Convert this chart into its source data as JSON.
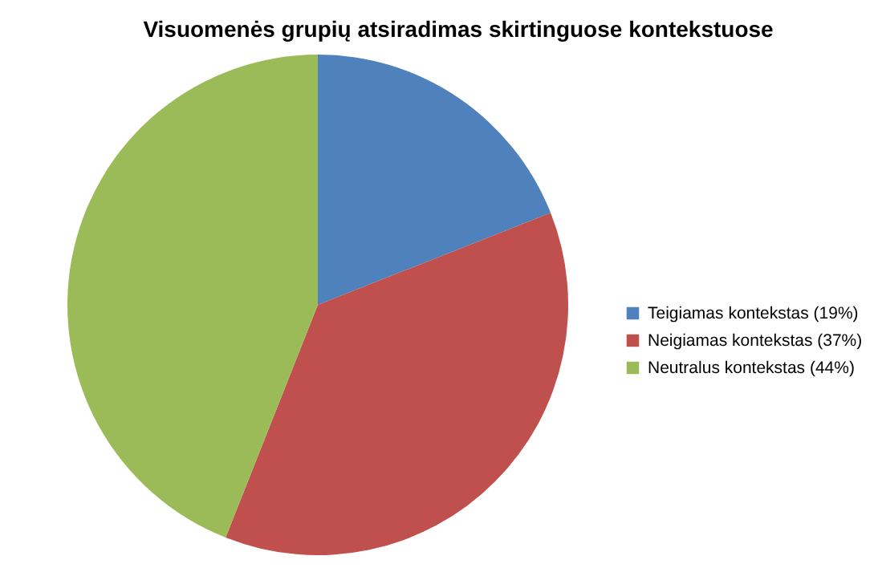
{
  "chart_data": {
    "type": "pie",
    "title": "Visuomenės grupių atsiradimas skirtinguose kontekstuose",
    "categories": [
      "Teigiamas kontekstas (19%)",
      "Neigiamas kontekstas (37%)",
      "Neutralus kontekstas (44%)"
    ],
    "values": [
      19,
      37,
      44
    ],
    "colors": [
      "#4f81bd",
      "#c0504d",
      "#9bbb59"
    ],
    "legend": "right"
  }
}
